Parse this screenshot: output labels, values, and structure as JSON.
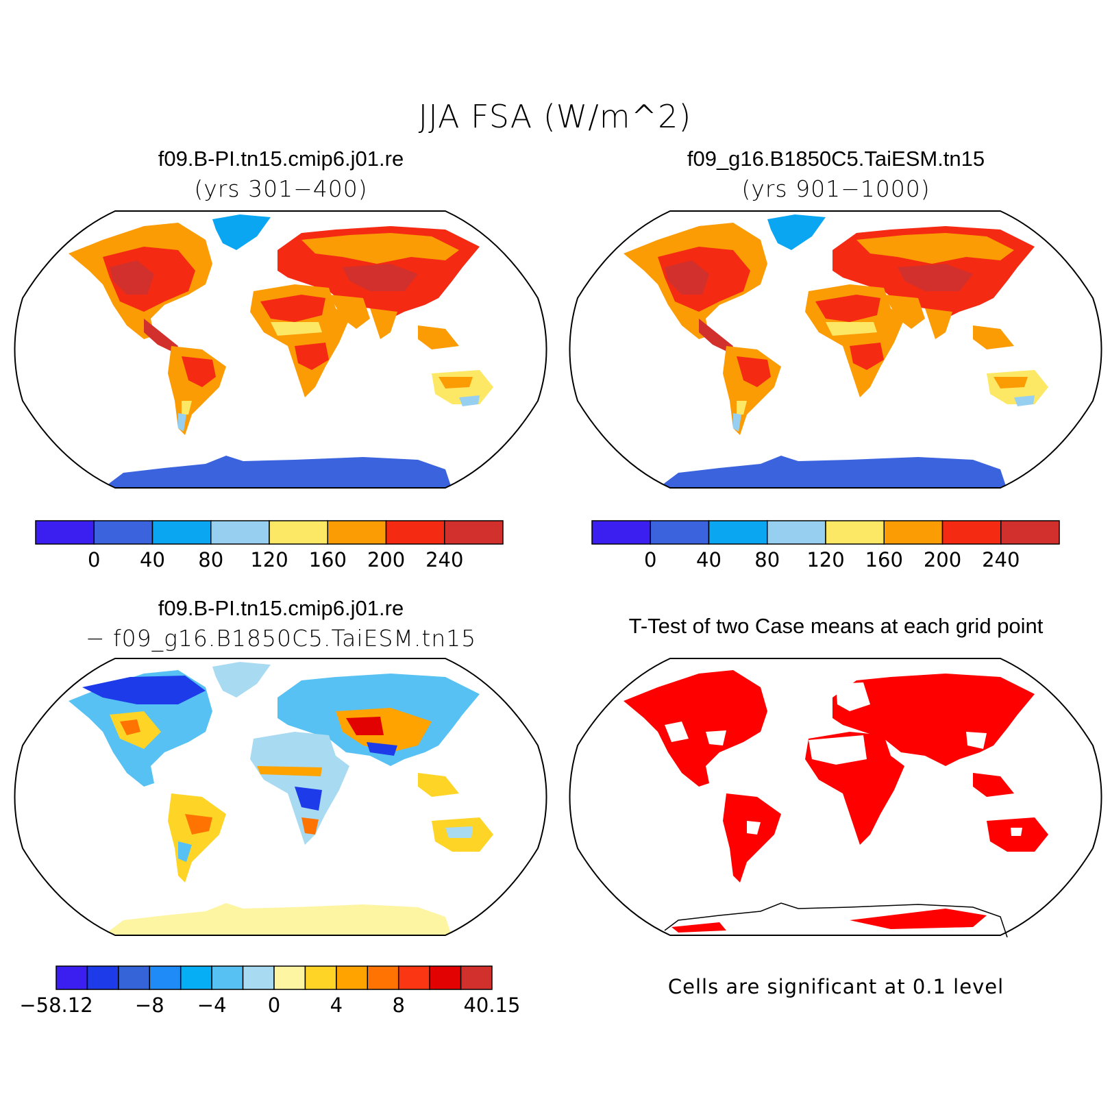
{
  "title": "JJA FSA (W/m^2)",
  "colors": {
    "abs_scale": [
      "#3b1ef0",
      "#3b63de",
      "#0aa6f2",
      "#96cff0",
      "#fde865",
      "#fb9c05",
      "#f42a13",
      "#d2302d"
    ],
    "diff_scale": [
      "#3b1ef0",
      "#1d3be8",
      "#3464d8",
      "#1f8bf7",
      "#06aef6",
      "#56c1f2",
      "#a8dbf2",
      "#fdf5a2",
      "#fed526",
      "#fea300",
      "#fe7302",
      "#fb3713",
      "#e30202",
      "#d2302d"
    ],
    "ocean": "#ffffff",
    "antarctica_abs": "#3b63de",
    "antarctica_diff": "#fdf5a2",
    "significant": "#ff0000"
  },
  "panels": [
    {
      "title": "f09.B-PI.tn15.cmip6.j01.re",
      "subtitle": "(yrs 301−400)",
      "colorbar": {
        "labels": [
          "0",
          "40",
          "80",
          "120",
          "160",
          "200",
          "240"
        ],
        "boundaries": [
          0,
          40,
          80,
          120,
          160,
          200,
          240
        ]
      }
    },
    {
      "title": "f09_g16.B1850C5.TaiESM.tn15",
      "subtitle": "(yrs 901−1000)",
      "colorbar": {
        "labels": [
          "0",
          "40",
          "80",
          "120",
          "160",
          "200",
          "240"
        ],
        "boundaries": [
          0,
          40,
          80,
          120,
          160,
          200,
          240
        ]
      }
    },
    {
      "title": "f09.B-PI.tn15.cmip6.j01.re",
      "subtitle": "− f09_g16.B1850C5.TaiESM.tn15",
      "colorbar": {
        "labels": [
          "−58.12",
          "−8",
          "−4",
          "0",
          "4",
          "8",
          "40.15"
        ]
      }
    },
    {
      "title": "T-Test of two Case means at each grid point",
      "note": "Cells are significant at 0.1 level"
    }
  ]
}
